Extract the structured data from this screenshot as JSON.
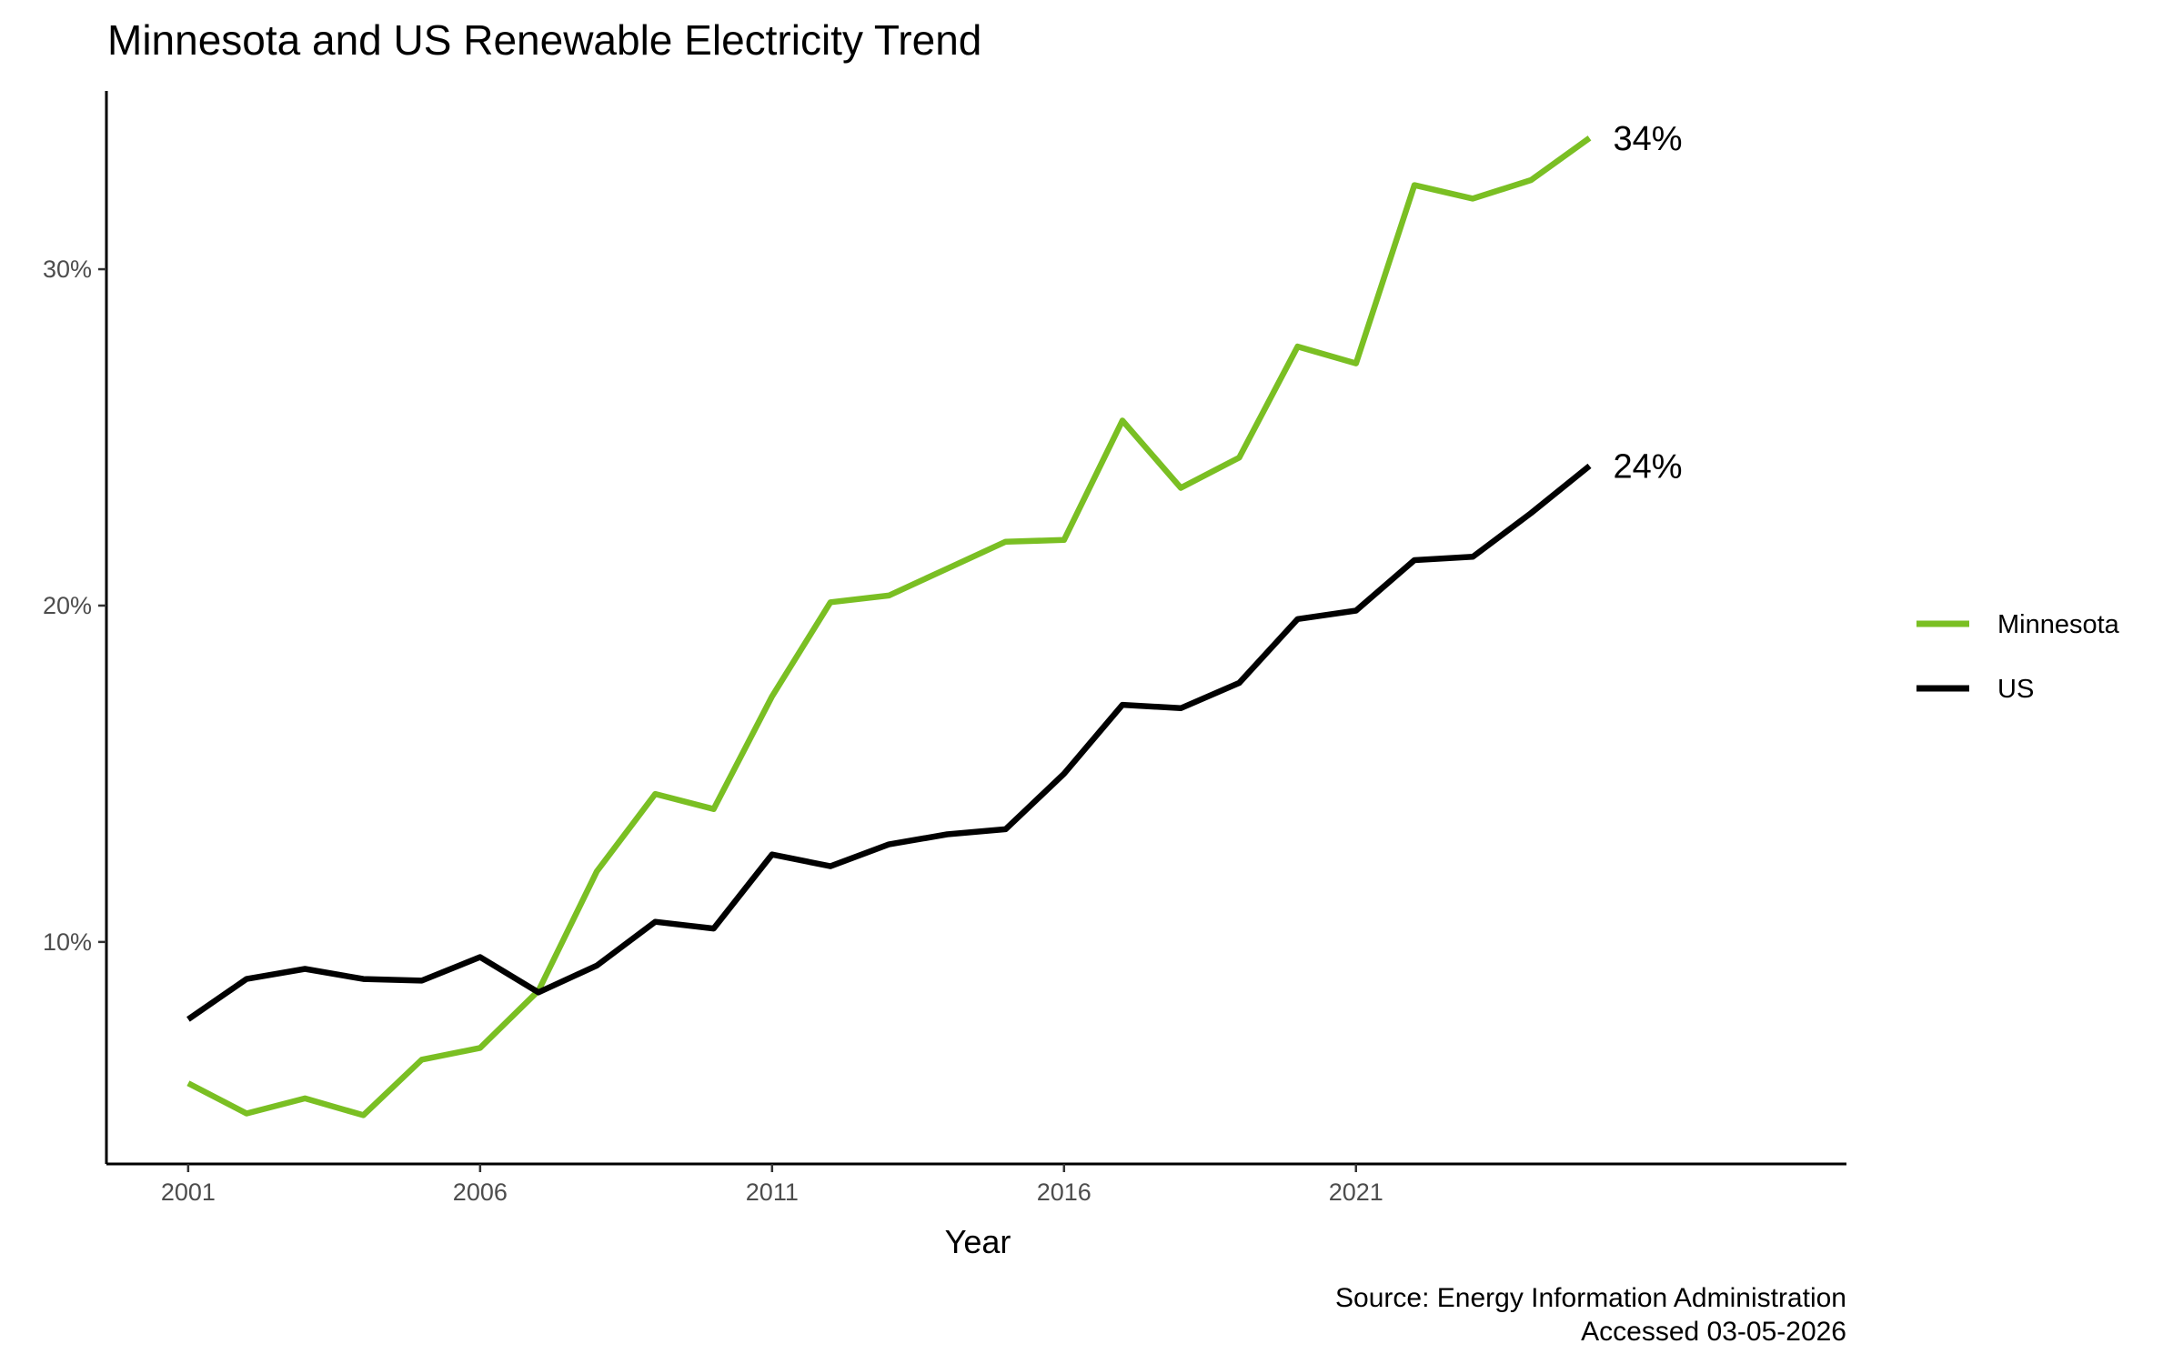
{
  "chart_data": {
    "type": "line",
    "title": "Minnesota and US Renewable Electricity Trend",
    "xlabel": "Year",
    "ylabel": "",
    "caption": [
      "Source: Energy Information Administration",
      "Accessed 03-05-2026"
    ],
    "x": [
      2001,
      2002,
      2003,
      2004,
      2005,
      2006,
      2007,
      2008,
      2009,
      2010,
      2011,
      2012,
      2013,
      2014,
      2015,
      2016,
      2017,
      2018,
      2019,
      2020,
      2021,
      2022,
      2023,
      2024,
      2025
    ],
    "xticks": [
      2001,
      2006,
      2011,
      2016,
      2021
    ],
    "xtick_labels": [
      "2001",
      "2006",
      "2011",
      "2016",
      "2021"
    ],
    "yticks": [
      10,
      20,
      30
    ],
    "ytick_labels": [
      "10%",
      "20%",
      "30%"
    ],
    "xlim": [
      1999.6,
      2029.4
    ],
    "ylim": [
      3.4,
      35.3
    ],
    "grid": false,
    "legend_position": "right",
    "series": [
      {
        "name": "Minnesota",
        "color": "#7abf23",
        "end_label": "34%",
        "values": [
          5.8,
          4.9,
          5.35,
          4.85,
          6.5,
          6.85,
          8.55,
          12.1,
          14.4,
          13.95,
          17.3,
          20.1,
          20.3,
          21.1,
          21.9,
          21.95,
          25.5,
          23.5,
          24.4,
          27.7,
          27.2,
          32.5,
          32.1,
          32.65,
          33.9
        ]
      },
      {
        "name": "US",
        "color": "#000000",
        "end_label": "24%",
        "values": [
          7.7,
          8.9,
          9.2,
          8.9,
          8.85,
          9.55,
          8.5,
          9.3,
          10.6,
          10.4,
          12.6,
          12.25,
          12.9,
          13.2,
          13.35,
          15.0,
          17.05,
          16.95,
          17.7,
          19.6,
          19.85,
          21.35,
          21.45,
          22.75,
          24.15
        ]
      }
    ]
  }
}
